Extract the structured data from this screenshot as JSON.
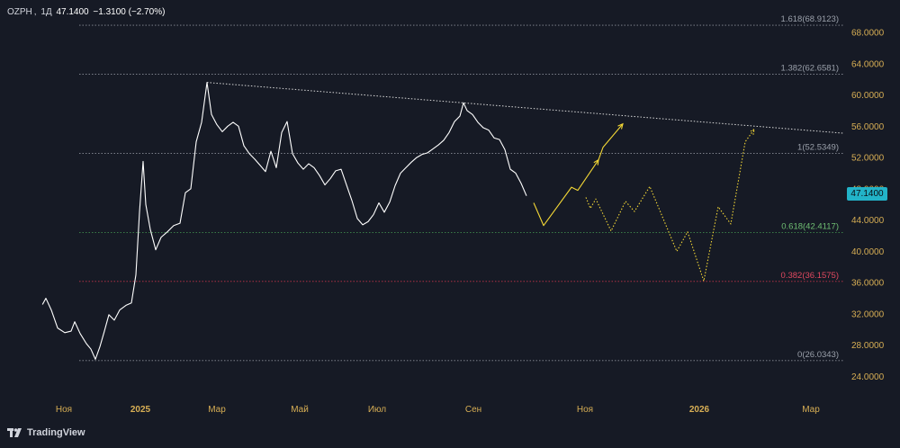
{
  "header": {
    "symbol": "OZPH",
    "interval": "1Д",
    "price": "47.1400",
    "change": "−1.3100 (−2.70%)"
  },
  "branding": {
    "name": "TradingView"
  },
  "current_price_label": "47.1400",
  "colors": {
    "background": "#161a25",
    "price_line": "#ffffff",
    "axis_text": "#d7ae54",
    "projection": "#f3d736",
    "fib_green": "#3f8a4c",
    "fib_red": "#c2344b",
    "fib_gray": "#8b8f99",
    "badge": "#22b3c8"
  },
  "chart_data": {
    "type": "line",
    "x_axis_labels": [
      "Ноя",
      "2025",
      "Мар",
      "Май",
      "Июл",
      "Сен",
      "Ноя",
      "2026",
      "Мар"
    ],
    "y_axis_ticks": [
      "68.0000",
      "64.0000",
      "60.0000",
      "56.0000",
      "52.0000",
      "48.0000",
      "44.0000",
      "40.0000",
      "36.0000",
      "32.0000",
      "28.0000",
      "24.0000"
    ],
    "ylim": [
      22.5,
      70.5
    ],
    "grid": false,
    "series": [
      {
        "values": [
          [
            47.2,
            33.2
          ],
          [
            51,
            34.0
          ],
          [
            57,
            32.5
          ],
          [
            64,
            30.2
          ],
          [
            72,
            29.6
          ],
          [
            79,
            29.8
          ],
          [
            83,
            31.0
          ],
          [
            89,
            29.5
          ],
          [
            96,
            28.2
          ],
          [
            101,
            27.5
          ],
          [
            106,
            26.2
          ],
          [
            111,
            27.8
          ],
          [
            116,
            29.8
          ],
          [
            121,
            31.9
          ],
          [
            127,
            31.2
          ],
          [
            133,
            32.5
          ],
          [
            140,
            33.1
          ],
          [
            146,
            33.4
          ],
          [
            151,
            37.0
          ],
          [
            155,
            45.0
          ],
          [
            159,
            51.5
          ],
          [
            162,
            46.0
          ],
          [
            167,
            42.8
          ],
          [
            173,
            40.2
          ],
          [
            179,
            41.8
          ],
          [
            186,
            42.5
          ],
          [
            193,
            43.3
          ],
          [
            200,
            43.6
          ],
          [
            206,
            47.5
          ],
          [
            212,
            48.0
          ],
          [
            218,
            54.0
          ],
          [
            224,
            56.5
          ],
          [
            230,
            61.6
          ],
          [
            235,
            57.5
          ],
          [
            241,
            56.2
          ],
          [
            247,
            55.3
          ],
          [
            253,
            56.0
          ],
          [
            259,
            56.5
          ],
          [
            265,
            56.0
          ],
          [
            271,
            53.5
          ],
          [
            277,
            52.5
          ],
          [
            283,
            51.8
          ],
          [
            289,
            51.0
          ],
          [
            295,
            50.2
          ],
          [
            301,
            52.8
          ],
          [
            307,
            50.7
          ],
          [
            313,
            55.2
          ],
          [
            319,
            56.6
          ],
          [
            325,
            52.5
          ],
          [
            331,
            51.3
          ],
          [
            337,
            50.5
          ],
          [
            343,
            51.2
          ],
          [
            349,
            50.7
          ],
          [
            355,
            49.7
          ],
          [
            361,
            48.5
          ],
          [
            367,
            49.3
          ],
          [
            373,
            50.3
          ],
          [
            379,
            50.5
          ],
          [
            385,
            48.5
          ],
          [
            391,
            46.5
          ],
          [
            397,
            44.2
          ],
          [
            403,
            43.4
          ],
          [
            409,
            43.8
          ],
          [
            415,
            44.7
          ],
          [
            421,
            46.2
          ],
          [
            427,
            45.0
          ],
          [
            433,
            46.3
          ],
          [
            439,
            48.4
          ],
          [
            445,
            50.0
          ],
          [
            451,
            50.7
          ],
          [
            457,
            51.4
          ],
          [
            463,
            52.0
          ],
          [
            469,
            52.4
          ],
          [
            475,
            52.6
          ],
          [
            481,
            53.1
          ],
          [
            487,
            53.6
          ],
          [
            493,
            54.2
          ],
          [
            499,
            55.2
          ],
          [
            505,
            56.6
          ],
          [
            511,
            57.3
          ],
          [
            515,
            59.0
          ],
          [
            519,
            58.0
          ],
          [
            525,
            57.5
          ],
          [
            531,
            56.5
          ],
          [
            537,
            55.8
          ],
          [
            543,
            55.5
          ],
          [
            549,
            54.5
          ],
          [
            555,
            54.3
          ],
          [
            561,
            53.0
          ],
          [
            567,
            50.5
          ],
          [
            573,
            50.0
          ],
          [
            579,
            48.7
          ],
          [
            585,
            47.1
          ]
        ]
      }
    ],
    "projections": [
      {
        "style": "solid",
        "values": [
          [
            593,
            46.2
          ],
          [
            604,
            43.3
          ],
          [
            635,
            48.2
          ],
          [
            642,
            47.8
          ],
          [
            665,
            51.7
          ]
        ]
      },
      {
        "style": "solid",
        "values": [
          [
            665,
            51.7
          ],
          [
            670,
            53.3
          ],
          [
            692,
            56.3
          ]
        ]
      },
      {
        "style": "dotted",
        "values": [
          [
            651,
            46.9
          ],
          [
            656,
            45.5
          ],
          [
            662,
            46.7
          ],
          [
            679,
            42.6
          ],
          [
            695,
            46.4
          ],
          [
            705,
            45.1
          ],
          [
            722,
            48.3
          ],
          [
            752,
            40.0
          ],
          [
            764,
            42.5
          ],
          [
            782,
            36.2
          ],
          [
            798,
            45.7
          ],
          [
            812,
            43.5
          ],
          [
            828,
            54.0
          ],
          [
            838,
            55.6
          ]
        ]
      }
    ],
    "trendline": {
      "style": "dotted",
      "values": [
        [
          230,
          61.6
        ],
        [
          938,
          55.1
        ]
      ]
    },
    "fib_levels": [
      {
        "label": "1.618(68.9123)",
        "value": 68.9123,
        "color": "gray"
      },
      {
        "label": "1.382(62.6581)",
        "value": 62.6581,
        "color": "gray"
      },
      {
        "label": "1(52.5349)",
        "value": 52.5349,
        "color": "gray"
      },
      {
        "label": "0.618(42.4117)",
        "value": 42.4117,
        "color": "green"
      },
      {
        "label": "0.382(36.1575)",
        "value": 36.1575,
        "color": "red"
      },
      {
        "label": "0(26.0343)",
        "value": 26.0343,
        "color": "gray"
      }
    ]
  }
}
